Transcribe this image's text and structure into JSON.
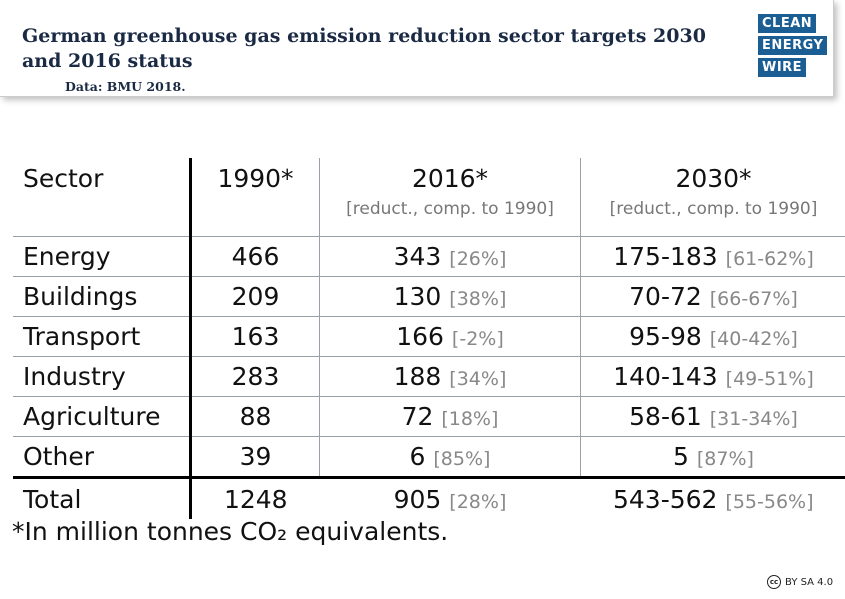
{
  "header": {
    "title": "German greenhouse gas emission reduction sector targets 2030 and 2016 status",
    "source": "Data: BMU 2018.",
    "logo": [
      "CLEAN",
      "ENERGY",
      "WIRE"
    ],
    "accent_color": "#1a5e94"
  },
  "chart_data": {
    "type": "table",
    "columns": [
      {
        "label": "Sector",
        "sub": ""
      },
      {
        "label": "1990*",
        "sub": ""
      },
      {
        "label": "2016*",
        "sub": "[reduct., comp. to 1990]"
      },
      {
        "label": "2030*",
        "sub": "[reduct., comp. to 1990]"
      }
    ],
    "rows": [
      {
        "sector": "Energy",
        "y1990": "466",
        "y2016": "343",
        "r2016": "[26%]",
        "y2030": "175-183",
        "r2030": "[61-62%]"
      },
      {
        "sector": "Buildings",
        "y1990": "209",
        "y2016": "130",
        "r2016": "[38%]",
        "y2030": "70-72",
        "r2030": "[66-67%]"
      },
      {
        "sector": "Transport",
        "y1990": "163",
        "y2016": "166",
        "r2016": "[-2%]",
        "y2030": "95-98",
        "r2030": "[40-42%]"
      },
      {
        "sector": "Industry",
        "y1990": "283",
        "y2016": "188",
        "r2016": "[34%]",
        "y2030": "140-143",
        "r2030": "[49-51%]"
      },
      {
        "sector": "Agriculture",
        "y1990": "88",
        "y2016": "72",
        "r2016": "[18%]",
        "y2030": "58-61",
        "r2030": "[31-34%]"
      },
      {
        "sector": "Other",
        "y1990": "39",
        "y2016": "6",
        "r2016": "[85%]",
        "y2030": "5",
        "r2030": "[87%]"
      }
    ],
    "total": {
      "sector": "Total",
      "y1990": "1248",
      "y2016": "905",
      "r2016": "[28%]",
      "y2030": "543-562",
      "r2030": "[55-56%]"
    },
    "footnote": "*In million tonnes CO₂ equivalents."
  },
  "license": {
    "text": "BY SA 4.0",
    "icon": "cc-icon",
    "icon_text": "cc"
  }
}
